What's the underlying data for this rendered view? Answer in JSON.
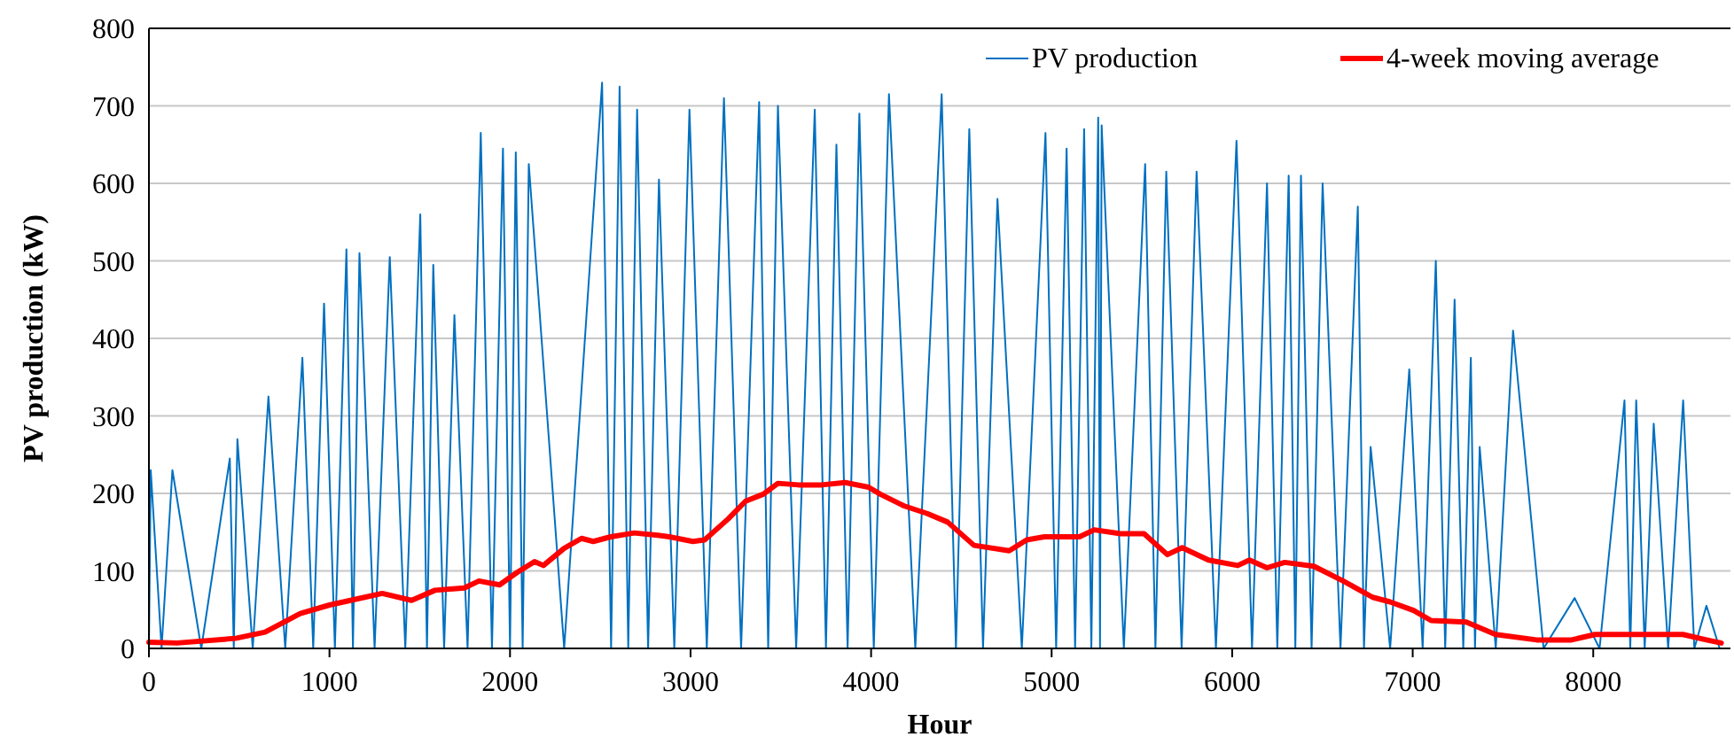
{
  "chart_data": {
    "type": "line",
    "xlabel": "Hour",
    "ylabel": "PV production (kW)",
    "xlim": [
      0,
      8760
    ],
    "xticks": [
      0,
      1000,
      2000,
      3000,
      4000,
      5000,
      6000,
      7000,
      8000
    ],
    "ylim": [
      0,
      800
    ],
    "yticks": [
      0,
      100,
      200,
      300,
      400,
      500,
      600,
      700,
      800
    ],
    "grid": "y",
    "legend": "top right",
    "line_style": "solid",
    "marker": "none",
    "series": [
      {
        "name": "PV production",
        "color": "#0070c0",
        "x": [
          0,
          10,
          70,
          130,
          290,
          448,
          470,
          490,
          575,
          662,
          755,
          850,
          910,
          970,
          1030,
          1094,
          1130,
          1166,
          1250,
          1334,
          1420,
          1503,
          1540,
          1575,
          1635,
          1692,
          1765,
          1838,
          1900,
          1961,
          2000,
          2032,
          2070,
          2104,
          2300,
          2510,
          2560,
          2607,
          2655,
          2704,
          2765,
          2825,
          2910,
          2994,
          3090,
          3185,
          3280,
          3380,
          3430,
          3484,
          3585,
          3688,
          3750,
          3808,
          3870,
          3935,
          4015,
          4099,
          4245,
          4391,
          4470,
          4544,
          4620,
          4700,
          4835,
          4966,
          5025,
          5083,
          5130,
          5180,
          5220,
          5258,
          5268,
          5277,
          5400,
          5518,
          5575,
          5635,
          5720,
          5803,
          5910,
          6024,
          6110,
          6193,
          6250,
          6313,
          6350,
          6381,
          6440,
          6501,
          6600,
          6696,
          6730,
          6767,
          6875,
          6981,
          7055,
          7128,
          7180,
          7232,
          7280,
          7322,
          7345,
          7371,
          7460,
          7556,
          7725,
          7897,
          8035,
          8173,
          8205,
          8238,
          8285,
          8335,
          8415,
          8498,
          8560,
          8627,
          8700
        ],
        "values": [
          0,
          230,
          0,
          230,
          0,
          245,
          0,
          270,
          0,
          325,
          0,
          375,
          0,
          445,
          0,
          515,
          0,
          510,
          0,
          505,
          0,
          560,
          0,
          495,
          0,
          430,
          0,
          665,
          0,
          645,
          0,
          640,
          0,
          625,
          0,
          730,
          0,
          725,
          0,
          695,
          0,
          605,
          0,
          695,
          0,
          710,
          0,
          705,
          0,
          700,
          0,
          695,
          0,
          650,
          0,
          690,
          0,
          715,
          0,
          715,
          0,
          670,
          0,
          580,
          0,
          665,
          0,
          645,
          0,
          670,
          0,
          685,
          0,
          675,
          0,
          625,
          0,
          615,
          0,
          615,
          0,
          655,
          0,
          600,
          0,
          610,
          0,
          610,
          0,
          600,
          0,
          570,
          0,
          260,
          0,
          360,
          0,
          500,
          0,
          450,
          0,
          375,
          0,
          260,
          0,
          410,
          0,
          65,
          0,
          320,
          0,
          320,
          0,
          290,
          0,
          320,
          0,
          55,
          0
        ]
      },
      {
        "name": "4-week moving average",
        "color": "#ff0000",
        "x": [
          0,
          156,
          480,
          643,
          838,
          1000,
          1195,
          1292,
          1455,
          1584,
          1747,
          1828,
          1942,
          2039,
          2136,
          2185,
          2299,
          2396,
          2461,
          2558,
          2688,
          2818,
          2883,
          3013,
          3078,
          3208,
          3305,
          3403,
          3484,
          3597,
          3727,
          3857,
          3986,
          4051,
          4181,
          4311,
          4424,
          4570,
          4765,
          4862,
          4960,
          5154,
          5236,
          5382,
          5512,
          5641,
          5723,
          5869,
          6031,
          6096,
          6193,
          6291,
          6453,
          6615,
          6778,
          6875,
          7005,
          7102,
          7297,
          7459,
          7686,
          7880,
          8010,
          8205,
          8497,
          8627,
          8709
        ],
        "values": [
          8,
          7,
          13,
          21,
          45,
          56,
          66,
          71,
          62,
          75,
          78,
          87,
          82,
          98,
          112,
          107,
          129,
          142,
          138,
          144,
          149,
          146,
          144,
          138,
          140,
          167,
          190,
          199,
          213,
          211,
          211,
          214,
          208,
          199,
          184,
          174,
          163,
          133,
          126,
          140,
          144,
          144,
          153,
          148,
          148,
          121,
          130,
          114,
          107,
          114,
          104,
          111,
          106,
          87,
          66,
          60,
          49,
          36,
          34,
          18,
          11,
          11,
          18,
          18,
          18,
          11,
          7
        ]
      }
    ]
  }
}
